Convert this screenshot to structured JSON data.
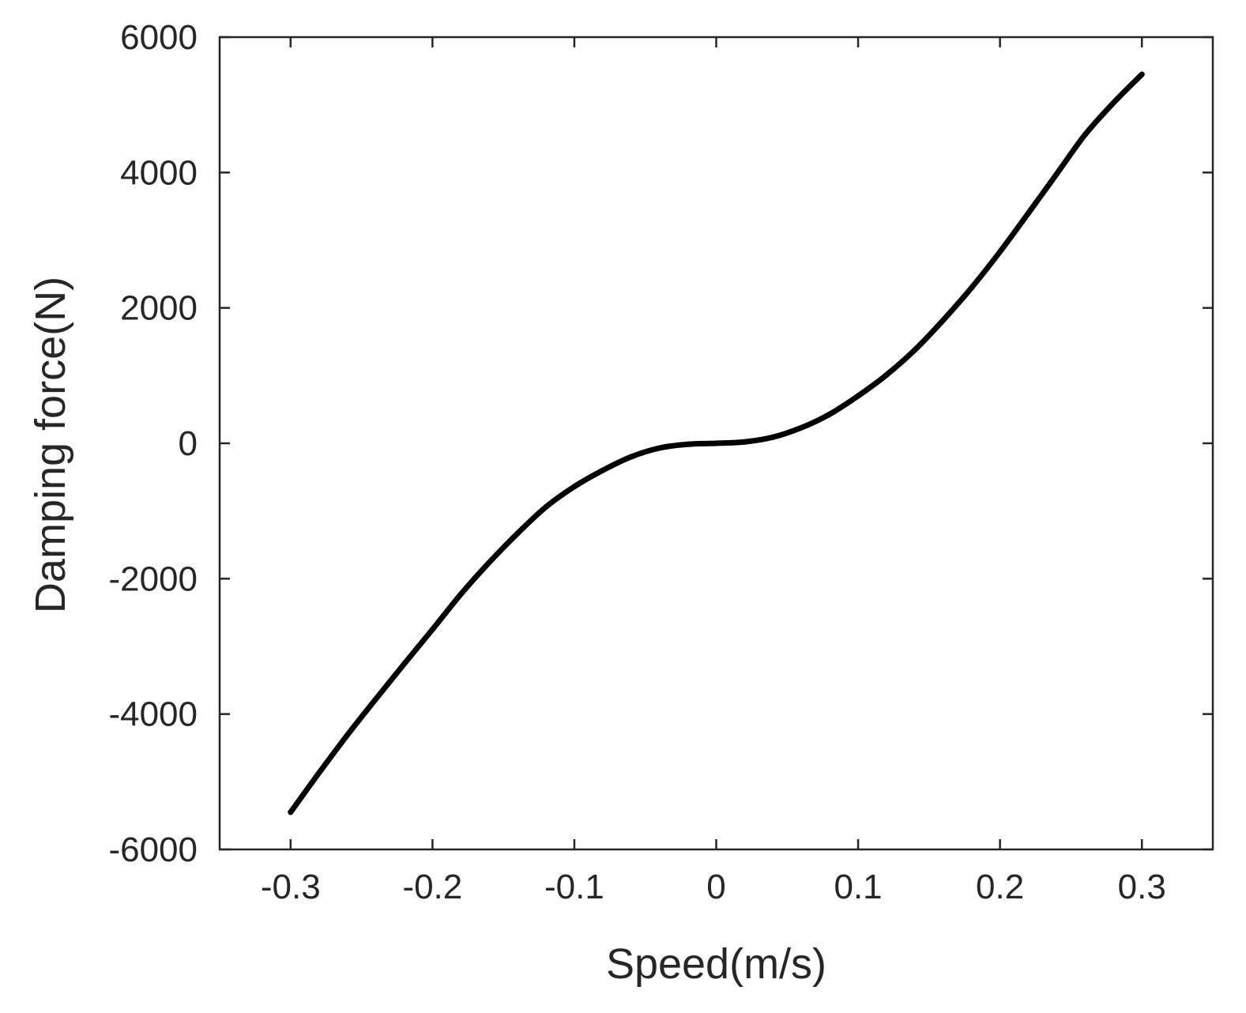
{
  "chart_data": {
    "type": "line",
    "title": "",
    "xlabel": "Speed(m/s)",
    "ylabel": "Damping force(N)",
    "xlim": [
      -0.35,
      0.35
    ],
    "ylim": [
      -6000,
      6000
    ],
    "x_ticks": [
      "-0.3",
      "-0.2",
      "-0.1",
      "0",
      "0.1",
      "0.2",
      "0.3"
    ],
    "y_ticks": [
      "-6000",
      "-4000",
      "-2000",
      "0",
      "2000",
      "4000",
      "6000"
    ],
    "grid": false,
    "box": true,
    "series": [
      {
        "color": "#000000",
        "x": [
          -0.3,
          -0.28,
          -0.26,
          -0.24,
          -0.22,
          -0.2,
          -0.18,
          -0.16,
          -0.14,
          -0.12,
          -0.1,
          -0.08,
          -0.06,
          -0.04,
          -0.02,
          0,
          0.02,
          0.04,
          0.06,
          0.08,
          0.1,
          0.12,
          0.14,
          0.16,
          0.18,
          0.2,
          0.22,
          0.24,
          0.26,
          0.28,
          0.3
        ],
        "y": [
          -5450,
          -4870,
          -4310,
          -3780,
          -3260,
          -2750,
          -2230,
          -1760,
          -1330,
          -940,
          -640,
          -400,
          -200,
          -70,
          -15,
          0,
          20,
          90,
          230,
          430,
          700,
          1010,
          1380,
          1820,
          2300,
          2830,
          3400,
          3980,
          4560,
          5030,
          5450
        ]
      }
    ]
  }
}
